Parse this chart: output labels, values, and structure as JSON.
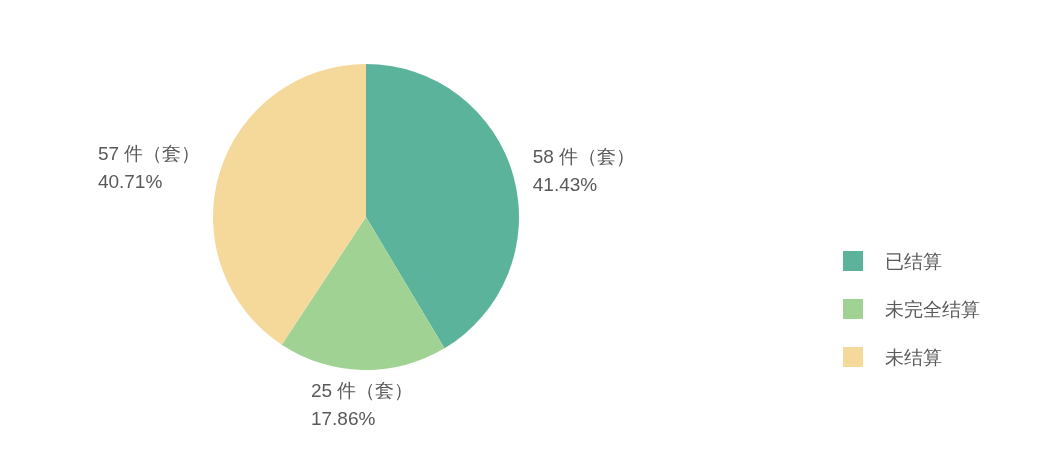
{
  "chart_data": {
    "type": "pie",
    "categories": [
      "已结算",
      "未完全结算",
      "未结算"
    ],
    "values": [
      58,
      25,
      57
    ],
    "colors": [
      "#5cb39b",
      "#a0d293",
      "#f5d99b"
    ],
    "value_labels": [
      "58 件（套）\n41.43%",
      "25 件（套）\n17.86%",
      "57 件（套）\n40.71%"
    ],
    "legend": "right"
  }
}
